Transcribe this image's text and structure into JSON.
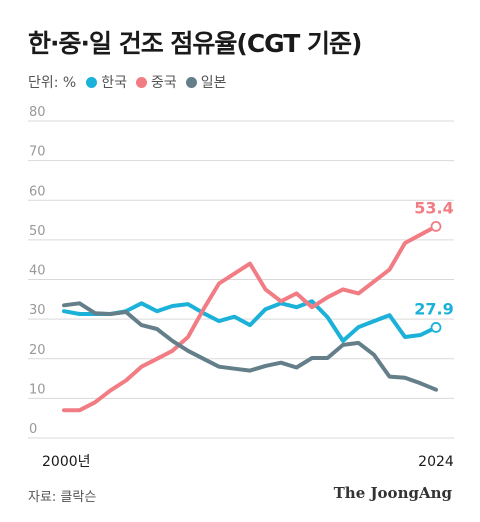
{
  "title": "한·중·일 건조 점유율(CGT 기준)",
  "unit_label": "단위: %",
  "source": "자료: 클락슨",
  "brand": "The JoongAng",
  "colors": {
    "korea": "#1bb1d8",
    "china": "#f27c83",
    "japan": "#647f8a",
    "grid": "#d9d9d9",
    "tick": "#999999"
  },
  "chart_data": {
    "type": "line",
    "x": [
      2000,
      2001,
      2002,
      2003,
      2004,
      2005,
      2006,
      2007,
      2008,
      2009,
      2010,
      2011,
      2012,
      2013,
      2014,
      2015,
      2016,
      2017,
      2018,
      2019,
      2020,
      2021,
      2022,
      2023,
      2024
    ],
    "x_tick_labels": [
      "2000년",
      "2024"
    ],
    "ylim": [
      0,
      80
    ],
    "yticks": [
      0,
      10,
      20,
      30,
      40,
      50,
      60,
      70,
      80
    ],
    "grid": true,
    "legend_position": "top-left",
    "series": [
      {
        "name": "한국",
        "color": "#1bb1d8",
        "values": [
          32,
          31.3,
          31.3,
          31.3,
          32,
          34,
          32,
          33.3,
          33.8,
          31.5,
          29.5,
          30.6,
          28.5,
          32.5,
          34,
          33,
          34.5,
          30.5,
          24.5,
          28,
          29.5,
          31,
          25.5,
          26,
          27.9
        ],
        "end_label": "27.9"
      },
      {
        "name": "중국",
        "color": "#f27c83",
        "values": [
          7,
          7,
          9,
          12,
          14.5,
          18,
          20,
          22,
          25.5,
          32.5,
          39,
          41.5,
          44,
          37.5,
          34.5,
          36.5,
          33,
          35.5,
          37.5,
          36.5,
          39.5,
          42.5,
          49.2,
          51.3,
          53.4
        ],
        "end_label": "53.4"
      },
      {
        "name": "일본",
        "color": "#647f8a",
        "values": [
          33.5,
          34,
          31.5,
          31.3,
          31.8,
          28.5,
          27.5,
          24.5,
          22,
          20,
          18,
          17.5,
          17,
          18.2,
          19,
          17.8,
          20.2,
          20.2,
          23.5,
          24,
          21,
          15.5,
          15.2,
          13.8,
          12.2
        ]
      }
    ]
  }
}
